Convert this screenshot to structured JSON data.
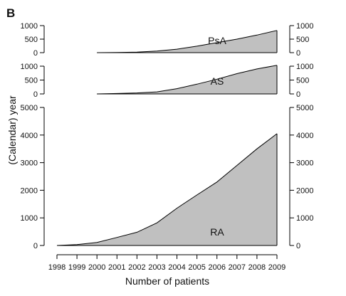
{
  "figure_label": "B",
  "colors": {
    "fill": "#c0c0c0",
    "stroke": "#000000",
    "axis": "#000000"
  },
  "chart_data": {
    "type": "area",
    "xlabel": "Number of patients",
    "ylabel": "(Calendar) year",
    "x_ticks": [
      "1998",
      "1999",
      "2000",
      "2001",
      "2002",
      "2003",
      "2004",
      "2005",
      "2006",
      "2007",
      "2008",
      "2009"
    ],
    "xlim": [
      1998,
      2009
    ],
    "grid": false,
    "legend": "none",
    "panels": [
      {
        "label": "PsA",
        "ylim": [
          0,
          1000
        ],
        "y_ticks": [
          "0",
          "500",
          "1000"
        ],
        "tick_values": [
          0,
          500,
          1000
        ],
        "x": [
          2000,
          2001,
          2002,
          2003,
          2004,
          2005,
          2006,
          2007,
          2008,
          2009
        ],
        "values": [
          0,
          5,
          20,
          60,
          130,
          240,
          370,
          500,
          650,
          820
        ]
      },
      {
        "label": "AS",
        "ylim": [
          0,
          1000
        ],
        "y_ticks": [
          "0",
          "500",
          "1000"
        ],
        "tick_values": [
          0,
          500,
          1000
        ],
        "x": [
          2000,
          2001,
          2002,
          2003,
          2004,
          2005,
          2006,
          2007,
          2008,
          2009
        ],
        "values": [
          0,
          15,
          35,
          75,
          190,
          350,
          530,
          730,
          900,
          1030
        ]
      },
      {
        "label": "RA",
        "ylim": [
          0,
          5000
        ],
        "y_ticks": [
          "0",
          "1000",
          "2000",
          "3000",
          "4000",
          "5000"
        ],
        "tick_values": [
          0,
          1000,
          2000,
          3000,
          4000,
          5000
        ],
        "x": [
          1998,
          1999,
          2000,
          2001,
          2002,
          2003,
          2004,
          2005,
          2006,
          2007,
          2008,
          2009
        ],
        "values": [
          0,
          30,
          110,
          290,
          480,
          820,
          1350,
          1830,
          2300,
          2900,
          3500,
          4050
        ]
      }
    ]
  }
}
